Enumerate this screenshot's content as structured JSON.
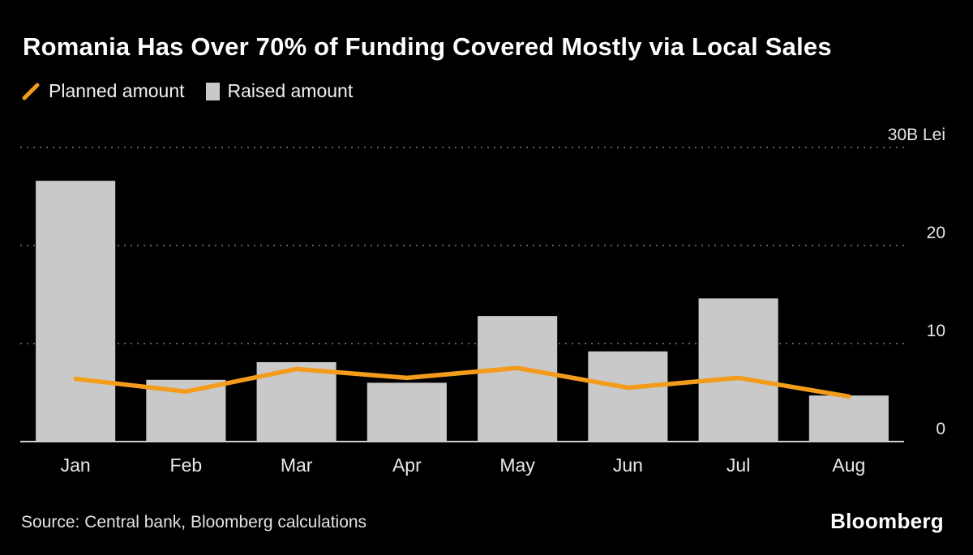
{
  "title": "Romania Has Over 70% of Funding Covered Mostly via Local Sales",
  "legend": {
    "planned": {
      "label": "Planned amount"
    },
    "raised": {
      "label": "Raised amount"
    }
  },
  "chart_data": {
    "type": "bar",
    "categories": [
      "Jan",
      "Feb",
      "Mar",
      "Apr",
      "May",
      "Jun",
      "Jul",
      "Aug"
    ],
    "series": [
      {
        "name": "Raised amount",
        "type": "bar",
        "color": "#c9c9c9",
        "values": [
          26.6,
          6.3,
          8.1,
          6.0,
          12.8,
          9.2,
          14.6,
          4.7
        ]
      },
      {
        "name": "Planned amount",
        "type": "line",
        "color": "#f39c1b",
        "values": [
          6.4,
          5.1,
          7.4,
          6.5,
          7.5,
          5.5,
          6.5,
          4.6
        ]
      }
    ],
    "ylim": [
      0,
      30
    ],
    "yticks": [
      {
        "value": 0,
        "label": "0"
      },
      {
        "value": 10,
        "label": "10"
      },
      {
        "value": 20,
        "label": "20"
      },
      {
        "value": 30,
        "label": "30B Lei"
      }
    ],
    "unit": "B Lei",
    "grid": "horizontal-dotted",
    "grid_color": "#5f5f5f",
    "axis_color": "#cfcfcf",
    "legend_position": "top-left",
    "background": "#000000"
  },
  "source": "Source: Central bank, Bloomberg calculations",
  "brand": "Bloomberg"
}
